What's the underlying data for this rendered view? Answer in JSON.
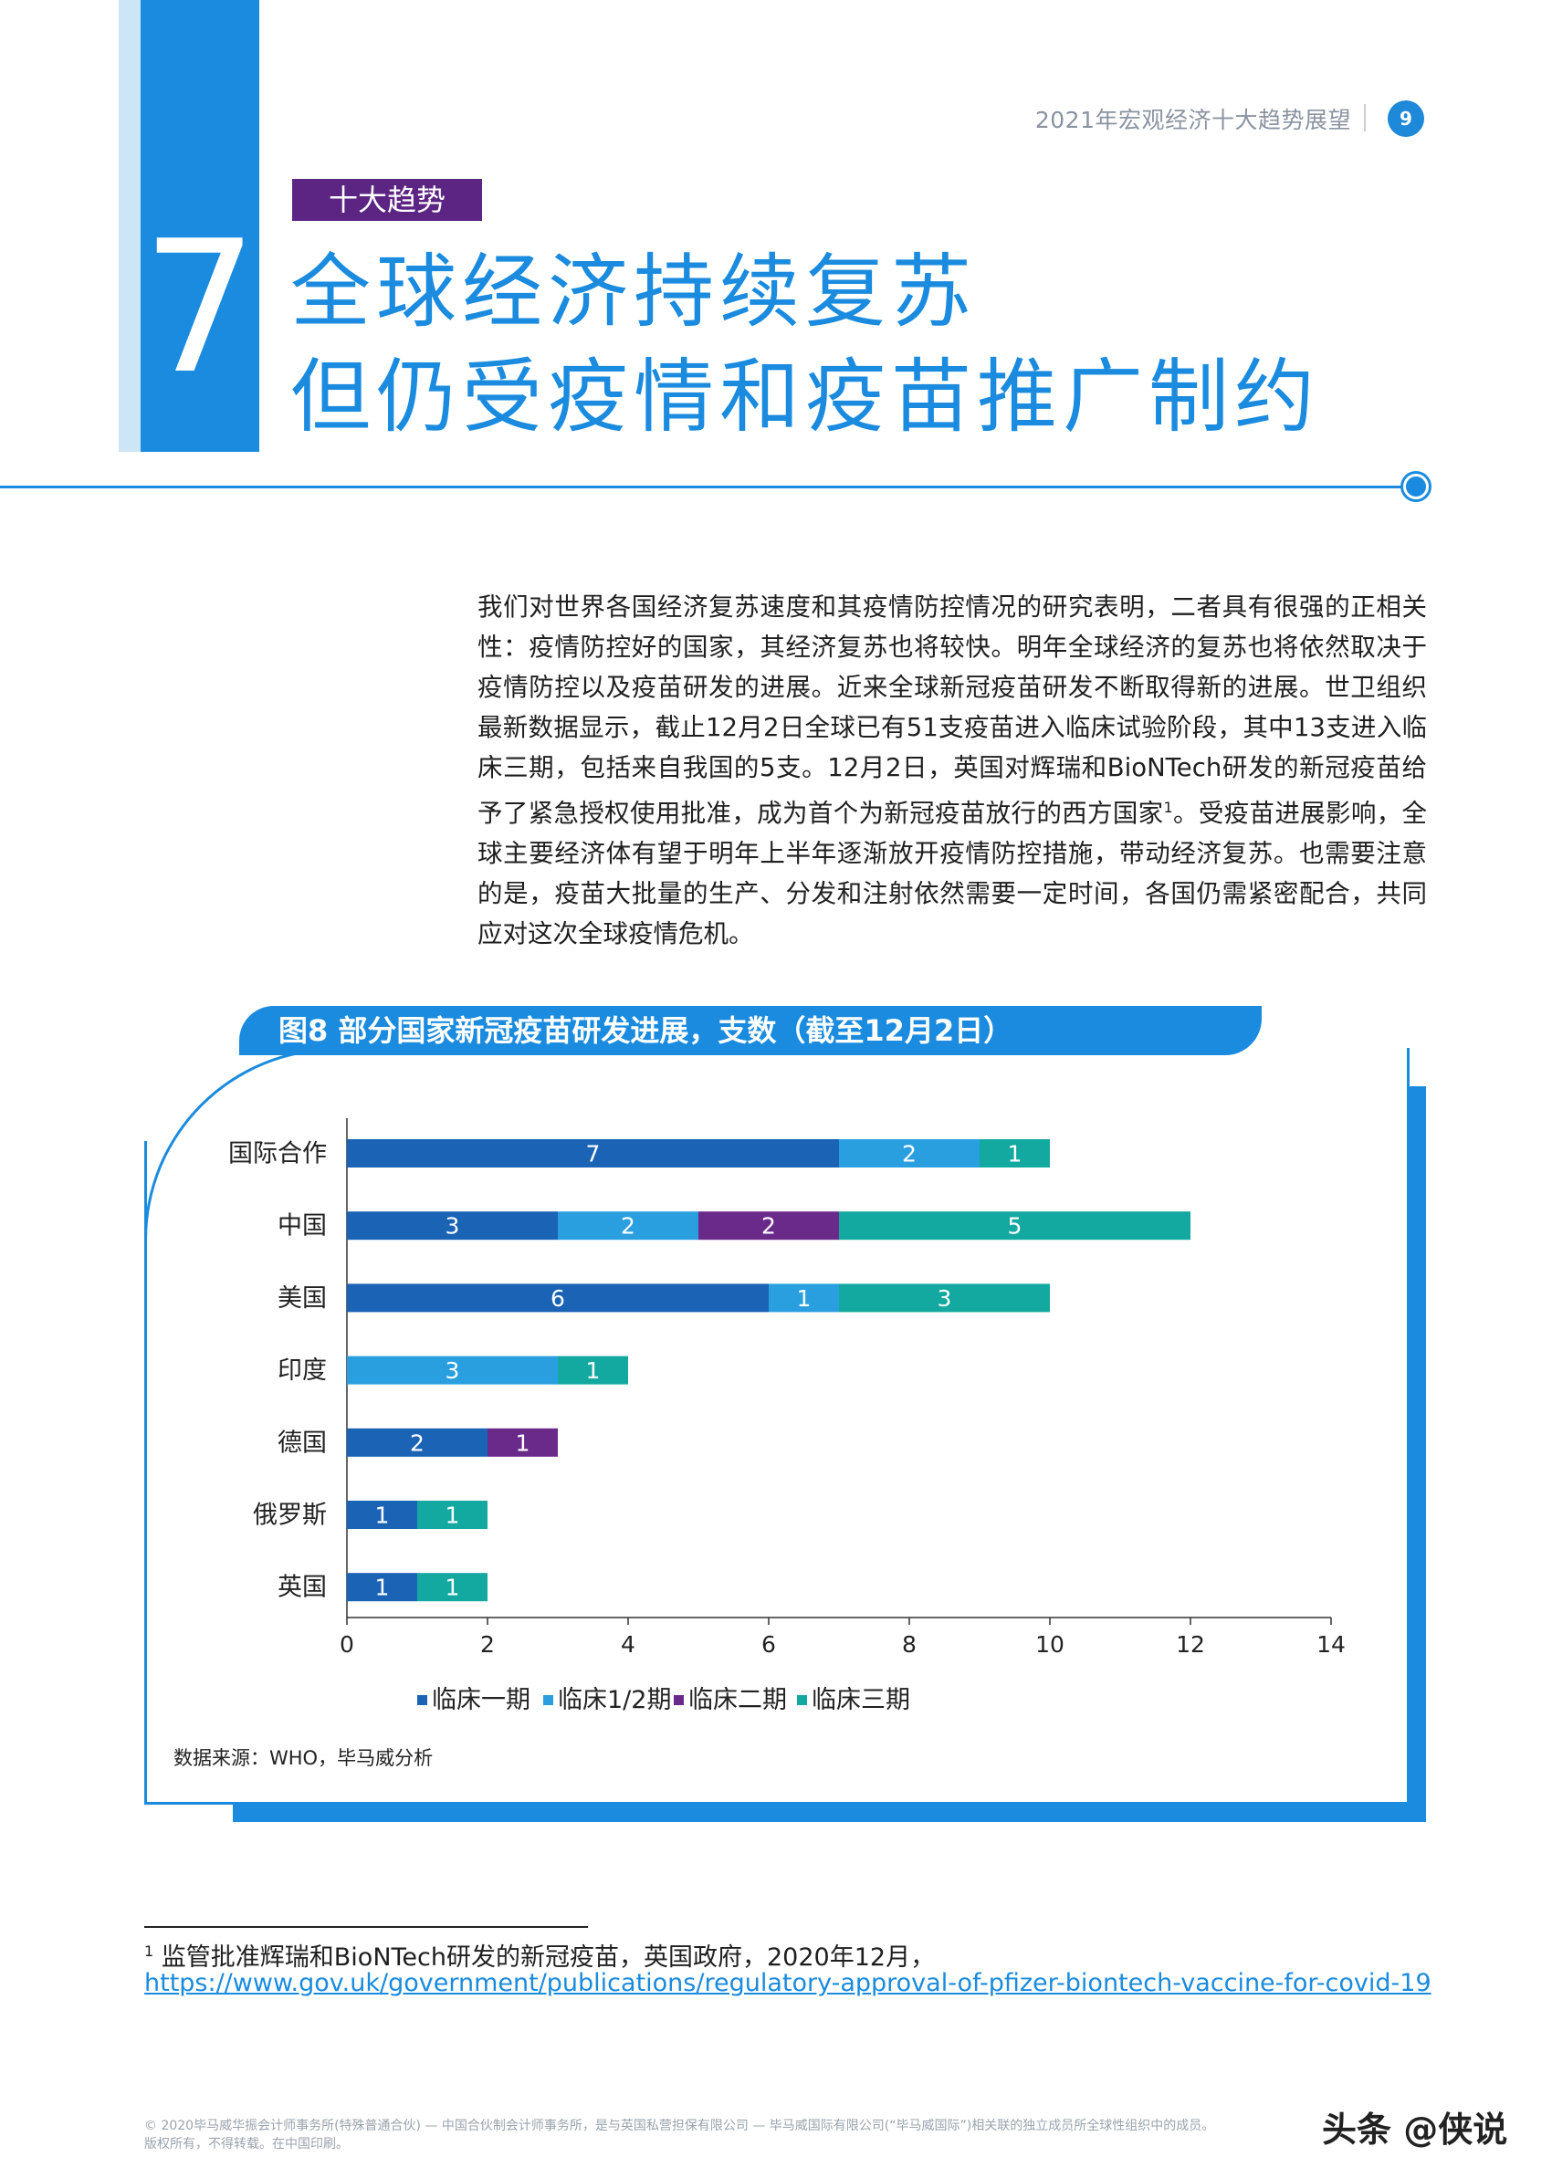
{
  "header": {
    "running_title": "2021年宏观经济十大趋势展望",
    "page_number": "9"
  },
  "section": {
    "number": "7",
    "tag": "十大趋势",
    "title_line1": "全球经济持续复苏",
    "title_line2": "但仍受疫情和疫苗推广制约"
  },
  "body": {
    "paragraph_pre": "我们对世界各国经济复苏速度和其疫情防控情况的研究表明，二者具有很强的正相关性：疫情防控好的国家，其经济复苏也将较快。明年全球经济的复苏也将依然取决于疫情防控以及疫苗研发的进展。近来全球新冠疫苗研发不断取得新的进展。世卫组织最新数据显示，截止12月2日全球已有51支疫苗进入临床试验阶段，其中13支进入临床三期，包括来自我国的5支。12月2日，英国对辉瑞和BioNTech研发的新冠疫苗给予了紧急授权使用批准，成为首个为新冠疫苗放行的西方国家",
    "footnote_ref": "1",
    "paragraph_post": "。受疫苗进展影响，全球主要经济体有望于明年上半年逐渐放开疫情防控措施，带动经济复苏。也需要注意的是，疫苗大批量的生产、分发和注射依然需要一定时间，各国仍需紧密配合，共同应对这次全球疫情危机。"
  },
  "chart_data": {
    "type": "bar",
    "orientation": "horizontal",
    "stacked": true,
    "title": "图8  部分国家新冠疫苗研发进展，支数（截至12月2日）",
    "categories": [
      "国际合作",
      "中国",
      "美国",
      "印度",
      "德国",
      "俄罗斯",
      "英国"
    ],
    "series": [
      {
        "name": "临床一期",
        "color": "#1b63b5",
        "values": [
          7,
          3,
          6,
          0,
          2,
          1,
          1
        ]
      },
      {
        "name": "临床1/2期",
        "color": "#2a9fe0",
        "values": [
          2,
          2,
          1,
          3,
          0,
          0,
          0
        ]
      },
      {
        "name": "临床二期",
        "color": "#6a2a8a",
        "values": [
          0,
          2,
          0,
          0,
          1,
          0,
          0
        ]
      },
      {
        "name": "临床三期",
        "color": "#14a9a0",
        "values": [
          1,
          5,
          3,
          1,
          0,
          1,
          1
        ]
      }
    ],
    "xlim": [
      0,
      14
    ],
    "x_ticks": [
      0,
      2,
      4,
      6,
      8,
      10,
      12,
      14
    ],
    "legend_position": "bottom",
    "grid": false,
    "source": "数据来源：WHO，毕马威分析"
  },
  "footnote": {
    "number": "1",
    "text": "监管批准辉瑞和BioNTech研发的新冠疫苗，英国政府，2020年12月，",
    "url": "https://www.gov.uk/government/publications/regulatory-approval-of-pfizer-biontech-vaccine-for-covid-19"
  },
  "footer": {
    "line1": "© 2020毕马威华振会计师事务所(特殊普通合伙) — 中国合伙制会计师事务所，是与英国私营担保有限公司 — 毕马威国际有限公司(“毕马威国际”)相关联的独立成员所全球性组织中的成员。",
    "line2": "版权所有，不得转载。在中国印刷。",
    "watermark": "头条 @侠说"
  }
}
